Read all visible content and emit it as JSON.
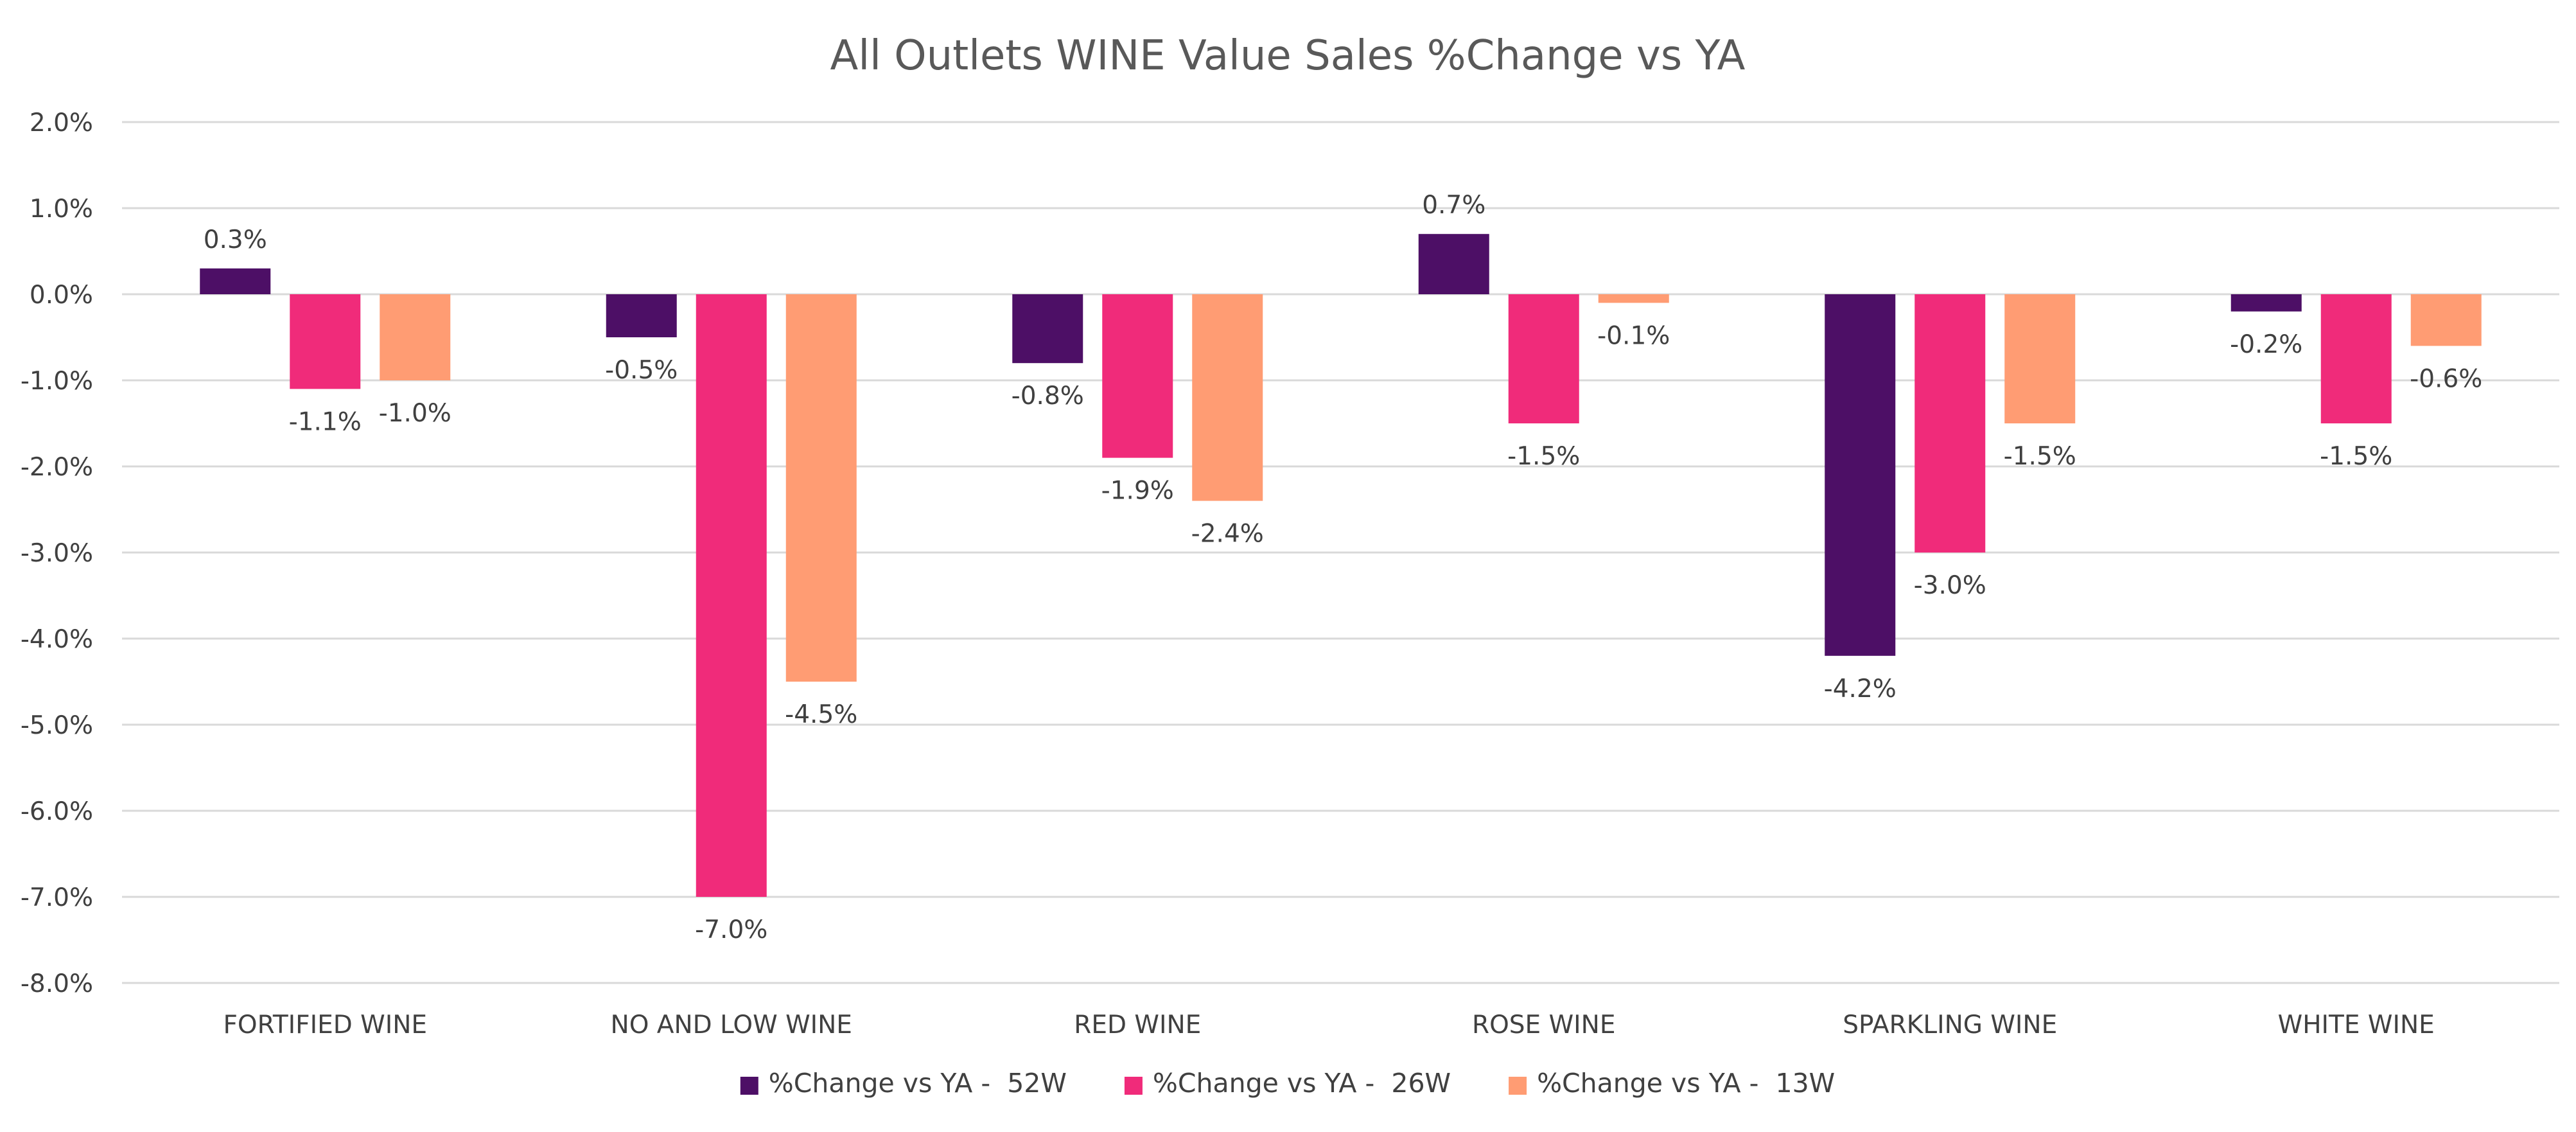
{
  "chart_data": {
    "type": "bar",
    "title": "All Outlets WINE Value Sales %Change vs YA",
    "xlabel": "",
    "ylabel": "",
    "ylim": [
      -8.0,
      2.0
    ],
    "ytick_step": 1.0,
    "ytick_suffix": "%",
    "grid": true,
    "legend_position": "bottom",
    "categories": [
      "FORTIFIED WINE",
      "NO AND LOW WINE",
      "RED WINE",
      "ROSE WINE",
      "SPARKLING WINE",
      "WHITE WINE"
    ],
    "series": [
      {
        "name": "%Change vs YA -  52W",
        "color": "#4d0f66",
        "values": [
          0.3,
          -0.5,
          -0.8,
          0.7,
          -4.2,
          -0.2
        ]
      },
      {
        "name": "%Change vs YA -  26W",
        "color": "#f02b7a",
        "values": [
          -1.1,
          -7.0,
          -1.9,
          -1.5,
          -3.0,
          -1.5
        ]
      },
      {
        "name": "%Change vs YA -  13W",
        "color": "#ff9c73",
        "values": [
          -1.0,
          -4.5,
          -2.4,
          -0.1,
          -1.5,
          -0.6
        ]
      }
    ]
  }
}
